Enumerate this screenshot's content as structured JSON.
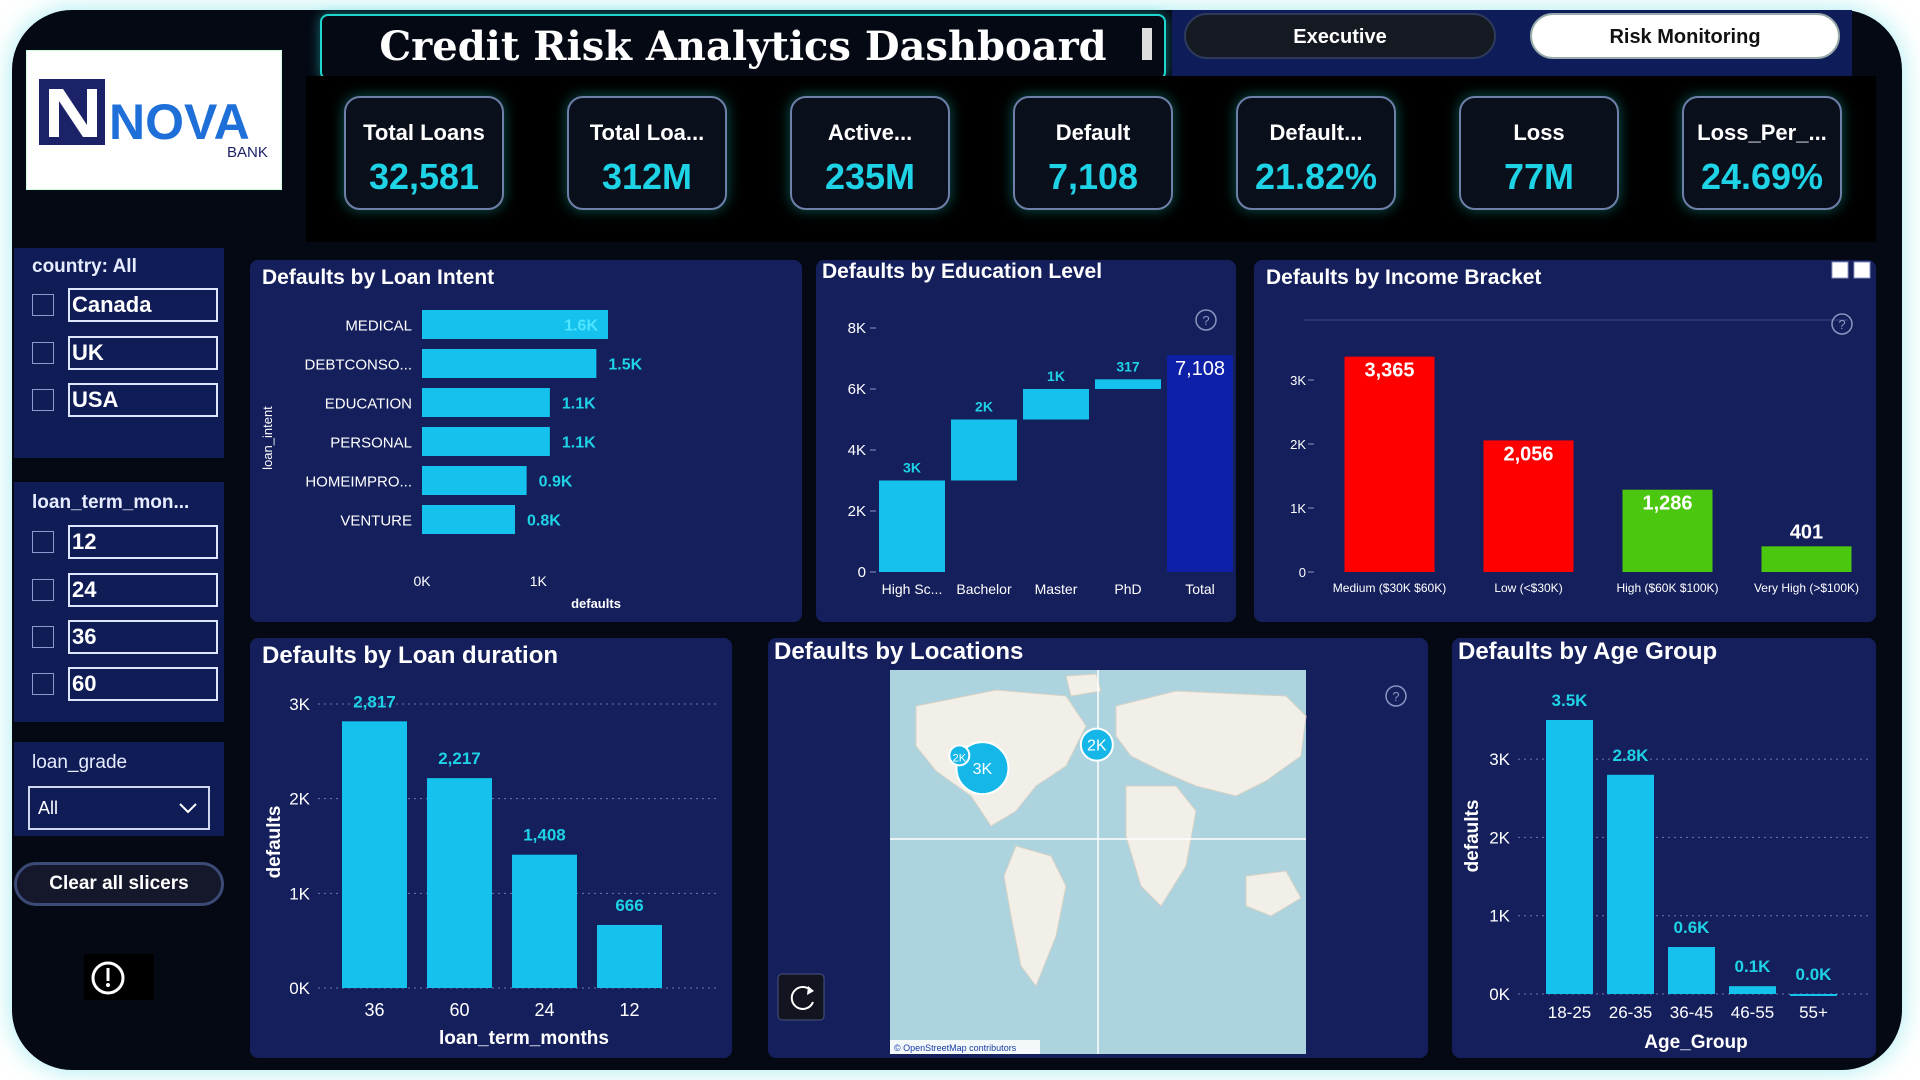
{
  "header": {
    "title": "Credit Risk Analytics Dashboard",
    "nav": {
      "executive": "Executive",
      "risk": "Risk Monitoring"
    }
  },
  "logo": {
    "text": "NOVA",
    "subtext": "BANK"
  },
  "kpis": [
    {
      "label": "Total Loans",
      "value": "32,581"
    },
    {
      "label": "Total Loa...",
      "value": "312M"
    },
    {
      "label": "Active...",
      "value": "235M"
    },
    {
      "label": "Default",
      "value": "7,108"
    },
    {
      "label": "Default...",
      "value": "21.82%"
    },
    {
      "label": "Loss",
      "value": "77M"
    },
    {
      "label": "Loss_Per_...",
      "value": "24.69%"
    }
  ],
  "filters": {
    "country": {
      "label": "country: All",
      "options": [
        "Canada",
        "UK",
        "USA"
      ]
    },
    "loan_term": {
      "label": "loan_term_mon...",
      "options": [
        "12",
        "24",
        "36",
        "60"
      ]
    },
    "loan_grade": {
      "label": "loan_grade",
      "selected": "All"
    },
    "clear_label": "Clear all slicers"
  },
  "colors": {
    "cyan": "#15c2ee",
    "red": "#ff0000",
    "green": "#4cc70f",
    "navy": "#0e1fa8",
    "panel": "#151f5c"
  },
  "chart_data": [
    {
      "id": "loan_intent",
      "type": "bar",
      "orientation": "horizontal",
      "title": "Defaults by Loan Intent",
      "categories": [
        "MEDICAL",
        "DEBTCONSO...",
        "EDUCATION",
        "PERSONAL",
        "HOMEIMPRO...",
        "VENTURE"
      ],
      "values": [
        1.6,
        1.5,
        1.1,
        1.1,
        0.9,
        0.8
      ],
      "labels": [
        "1.6K",
        "1.5K",
        "1.1K",
        "1.1K",
        "0.9K",
        "0.8K"
      ],
      "xlabel": "defaults",
      "ylabel": "loan_intent",
      "xticks": [
        "0K",
        "1K"
      ],
      "xlim": [
        0,
        1.6
      ]
    },
    {
      "id": "education",
      "type": "waterfall",
      "title": "Defaults by Education Level",
      "categories": [
        "High Sc...",
        "Bachelor",
        "Master",
        "PhD",
        "Total"
      ],
      "values": [
        3,
        2,
        1,
        0.317,
        7.108
      ],
      "labels": [
        "3K",
        "2K",
        "1K",
        "317",
        "7,108"
      ],
      "yticks": [
        "0",
        "2K",
        "4K",
        "6K",
        "8K"
      ],
      "ylim": [
        0,
        8
      ]
    },
    {
      "id": "income",
      "type": "bar",
      "title": "Defaults by Income Bracket",
      "categories": [
        "Medium ($30K $60K)",
        "Low (<$30K)",
        "High ($60K $100K)",
        "Very High (>$100K)"
      ],
      "values": [
        3365,
        2056,
        1286,
        401
      ],
      "labels": [
        "3,365",
        "2,056",
        "1,286",
        "401"
      ],
      "bar_colors": [
        "#ff0000",
        "#ff0000",
        "#4cc70f",
        "#4cc70f"
      ],
      "yticks": [
        "0",
        "1K",
        "2K",
        "3K"
      ],
      "ylim": [
        0,
        4000
      ]
    },
    {
      "id": "duration",
      "type": "bar",
      "title": "Defaults by Loan duration",
      "categories": [
        "36",
        "60",
        "24",
        "12"
      ],
      "values": [
        2817,
        2217,
        1408,
        666
      ],
      "labels": [
        "2,817",
        "2,217",
        "1,408",
        "666"
      ],
      "xlabel": "loan_term_months",
      "ylabel": "defaults",
      "yticks": [
        "0K",
        "1K",
        "2K",
        "3K"
      ],
      "ylim": [
        0,
        3000
      ]
    },
    {
      "id": "age",
      "type": "bar",
      "title": "Defaults by Age Group",
      "categories": [
        "18-25",
        "26-35",
        "36-45",
        "46-55",
        "55+"
      ],
      "values": [
        3.5,
        2.8,
        0.6,
        0.1,
        0.0
      ],
      "labels": [
        "3.5K",
        "2.8K",
        "0.6K",
        "0.1K",
        "0.0K"
      ],
      "xlabel": "Age_Group",
      "ylabel": "defaults",
      "yticks": [
        "0K",
        "1K",
        "2K",
        "3K"
      ],
      "ylim": [
        0,
        3.5
      ]
    }
  ],
  "map": {
    "title": "Defaults by Locations",
    "bubbles": [
      {
        "label": "3K",
        "lon": -100,
        "lat": 44
      },
      {
        "label": "2K",
        "lon": -120,
        "lat": 50
      },
      {
        "label": "2K",
        "lon": -1,
        "lat": 55
      }
    ],
    "attribution": "© OpenStreetMap contributors"
  }
}
